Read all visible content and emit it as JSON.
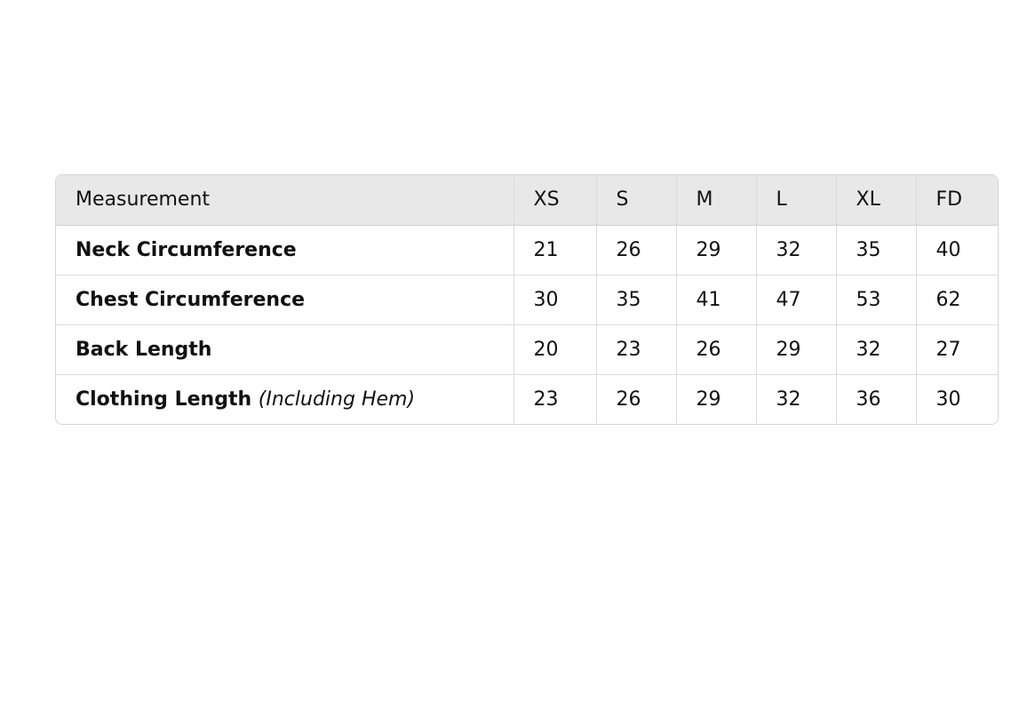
{
  "table": {
    "headers": [
      "Measurement",
      "XS",
      "S",
      "M",
      "L",
      "XL",
      "FD"
    ],
    "rows": [
      {
        "label": "Neck Circumference",
        "note": "",
        "values": [
          "21",
          "26",
          "29",
          "32",
          "35",
          "40"
        ]
      },
      {
        "label": "Chest Circumference",
        "note": "",
        "values": [
          "30",
          "35",
          "41",
          "47",
          "53",
          "62"
        ]
      },
      {
        "label": "Back Length",
        "note": "",
        "values": [
          "20",
          "23",
          "26",
          "29",
          "32",
          "27"
        ]
      },
      {
        "label": "Clothing Length",
        "note": "(Including Hem)",
        "values": [
          "23",
          "26",
          "29",
          "32",
          "36",
          "30"
        ]
      }
    ]
  }
}
